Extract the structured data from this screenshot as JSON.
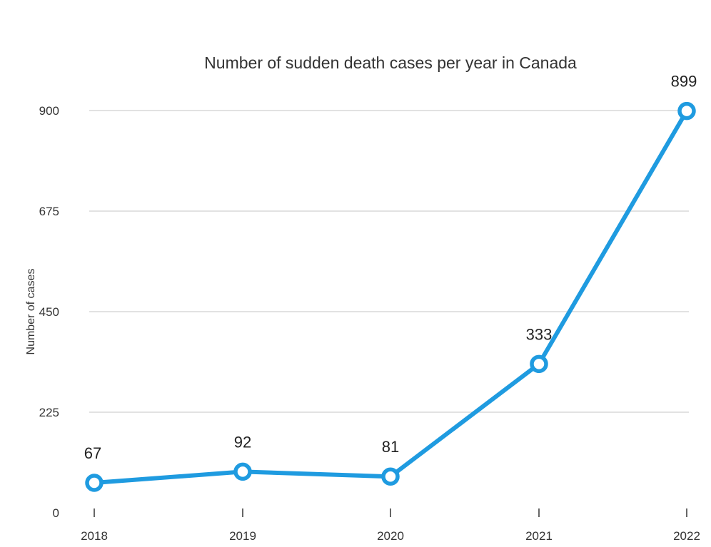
{
  "chart_data": {
    "type": "line",
    "title": "Number of sudden death cases per year in Canada",
    "xlabel": "",
    "ylabel": "Number of cases",
    "categories": [
      "2018",
      "2019",
      "2020",
      "2021",
      "2022"
    ],
    "series": [
      {
        "name": "",
        "values": [
          67,
          92,
          81,
          333,
          899
        ],
        "color": "#1f9be0"
      }
    ],
    "data_labels": [
      "67",
      "92",
      "81",
      "333",
      "899"
    ],
    "y_ticks": [
      0,
      225,
      450,
      675,
      900
    ],
    "y_tick_labels": [
      "0",
      "225",
      "450",
      "675",
      "900"
    ],
    "ylim": [
      0,
      900
    ],
    "grid": true,
    "legend": "none",
    "line_color": "#1f9be0",
    "grid_color": "#d9d9d9"
  }
}
